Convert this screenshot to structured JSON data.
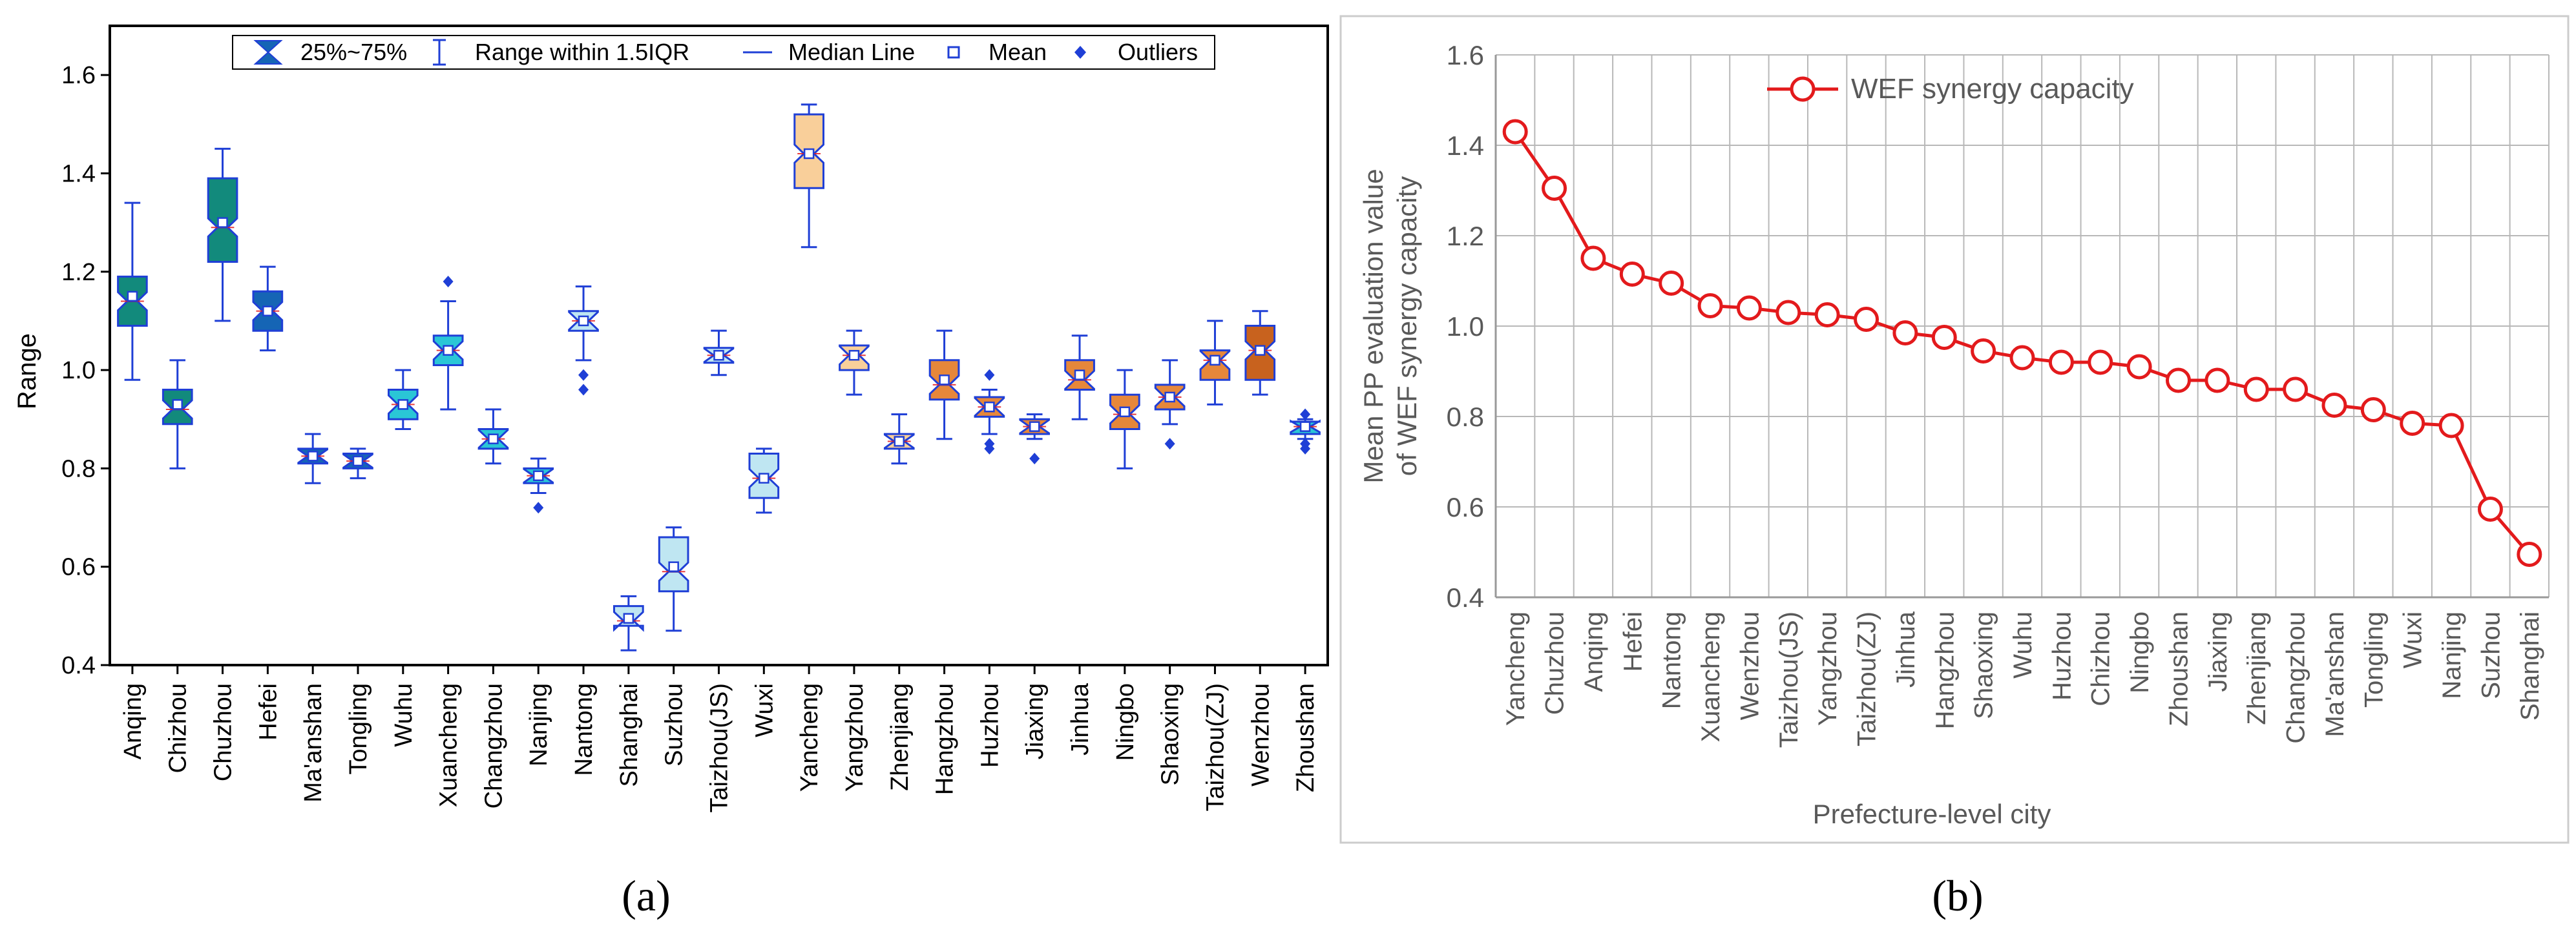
{
  "colors": {
    "box_blue_stroke": "#1f3fd6",
    "median_line": "#1f3fd6",
    "mean_marker": "#1f3fd6",
    "outlier": "#1f3fd6",
    "fill_teal_dark": "#128a7c",
    "fill_blue_dark": "#1565b5",
    "fill_cyan": "#2ac6d6",
    "fill_light_blue": "#bfe6f2",
    "fill_peach": "#f9cf9a",
    "fill_orange": "#e6873a",
    "fill_brown": "#c8621e",
    "line_red": "#e31a1c",
    "grid": "#b8b8b8",
    "axis_b": "#999999",
    "text_b": "#595959",
    "panel_border": "#cccccc"
  },
  "chart_data": [
    {
      "type": "box",
      "panel_label": "(a)",
      "title": "",
      "ylabel": "Range",
      "xlabel": "",
      "ylim": [
        0.4,
        1.7
      ],
      "yticks": [
        "0.4",
        "0.6",
        "0.8",
        "1.0",
        "1.2",
        "1.4",
        "1.6"
      ],
      "legend": {
        "placement": "top-center",
        "entries": [
          "25%~75%",
          "Range within 1.5IQR",
          "Median Line",
          "Mean",
          "Outliers"
        ]
      },
      "categories": [
        "Anqing",
        "Chizhou",
        "Chuzhou",
        "Hefei",
        "Ma'anshan",
        "Tongling",
        "Wuhu",
        "Xuancheng",
        "Changzhou",
        "Nanjing",
        "Nantong",
        "Shanghai",
        "Suzhou",
        "Taizhou(JS)",
        "Wuxi",
        "Yancheng",
        "Yangzhou",
        "Zhenjiang",
        "Hangzhou",
        "Huzhou",
        "Jiaxing",
        "Jinhua",
        "Ningbo",
        "Shaoxing",
        "Taizhou(ZJ)",
        "Wenzhou",
        "Zhoushan"
      ],
      "boxes": [
        {
          "min": 0.98,
          "q1": 1.09,
          "median": 1.14,
          "q3": 1.19,
          "max": 1.34,
          "mean": 1.15,
          "fill": "#128a7c",
          "outliers": []
        },
        {
          "min": 0.8,
          "q1": 0.89,
          "median": 0.92,
          "q3": 0.96,
          "max": 1.02,
          "mean": 0.93,
          "fill": "#128a7c",
          "outliers": []
        },
        {
          "min": 1.1,
          "q1": 1.22,
          "median": 1.29,
          "q3": 1.39,
          "max": 1.45,
          "mean": 1.3,
          "fill": "#128a7c",
          "outliers": []
        },
        {
          "min": 1.04,
          "q1": 1.08,
          "median": 1.12,
          "q3": 1.16,
          "max": 1.21,
          "mean": 1.12,
          "fill": "#1565b5",
          "outliers": []
        },
        {
          "min": 0.77,
          "q1": 0.81,
          "median": 0.825,
          "q3": 0.84,
          "max": 0.87,
          "mean": 0.825,
          "fill": "#1565b5",
          "outliers": []
        },
        {
          "min": 0.78,
          "q1": 0.8,
          "median": 0.815,
          "q3": 0.83,
          "max": 0.84,
          "mean": 0.815,
          "fill": "#1565b5",
          "outliers": []
        },
        {
          "min": 0.88,
          "q1": 0.9,
          "median": 0.93,
          "q3": 0.96,
          "max": 1.0,
          "mean": 0.93,
          "fill": "#2ac6d6",
          "outliers": []
        },
        {
          "min": 0.92,
          "q1": 1.01,
          "median": 1.04,
          "q3": 1.07,
          "max": 1.14,
          "mean": 1.04,
          "fill": "#2ac6d6",
          "outliers": [
            1.18
          ]
        },
        {
          "min": 0.81,
          "q1": 0.84,
          "median": 0.86,
          "q3": 0.88,
          "max": 0.92,
          "mean": 0.86,
          "fill": "#2ac6d6",
          "outliers": []
        },
        {
          "min": 0.75,
          "q1": 0.77,
          "median": 0.785,
          "q3": 0.8,
          "max": 0.82,
          "mean": 0.785,
          "fill": "#2ac6d6",
          "outliers": [
            0.72
          ]
        },
        {
          "min": 1.02,
          "q1": 1.08,
          "median": 1.1,
          "q3": 1.12,
          "max": 1.17,
          "mean": 1.1,
          "fill": "#bfe6f2",
          "outliers": [
            0.99,
            0.96
          ]
        },
        {
          "min": 0.43,
          "q1": 0.48,
          "median": 0.49,
          "q3": 0.52,
          "max": 0.54,
          "mean": 0.495,
          "fill": "#bfe6f2",
          "outliers": []
        },
        {
          "min": 0.47,
          "q1": 0.55,
          "median": 0.59,
          "q3": 0.66,
          "max": 0.68,
          "mean": 0.6,
          "fill": "#bfe6f2",
          "outliers": []
        },
        {
          "min": 0.99,
          "q1": 1.015,
          "median": 1.03,
          "q3": 1.045,
          "max": 1.08,
          "mean": 1.03,
          "fill": "#bfe6f2",
          "outliers": []
        },
        {
          "min": 0.71,
          "q1": 0.74,
          "median": 0.78,
          "q3": 0.83,
          "max": 0.84,
          "mean": 0.78,
          "fill": "#bfe6f2",
          "outliers": []
        },
        {
          "min": 1.25,
          "q1": 1.37,
          "median": 1.44,
          "q3": 1.52,
          "max": 1.54,
          "mean": 1.44,
          "fill": "#f9cf9a",
          "outliers": []
        },
        {
          "min": 0.95,
          "q1": 1.0,
          "median": 1.03,
          "q3": 1.05,
          "max": 1.08,
          "mean": 1.03,
          "fill": "#f9cf9a",
          "outliers": []
        },
        {
          "min": 0.81,
          "q1": 0.84,
          "median": 0.855,
          "q3": 0.87,
          "max": 0.91,
          "mean": 0.855,
          "fill": "#f9cf9a",
          "outliers": []
        },
        {
          "min": 0.86,
          "q1": 0.94,
          "median": 0.97,
          "q3": 1.02,
          "max": 1.08,
          "mean": 0.98,
          "fill": "#e6873a",
          "outliers": []
        },
        {
          "min": 0.87,
          "q1": 0.905,
          "median": 0.925,
          "q3": 0.945,
          "max": 0.96,
          "mean": 0.925,
          "fill": "#e6873a",
          "outliers": [
            0.99,
            0.85,
            0.84
          ]
        },
        {
          "min": 0.86,
          "q1": 0.87,
          "median": 0.885,
          "q3": 0.9,
          "max": 0.91,
          "mean": 0.885,
          "fill": "#e6873a",
          "outliers": [
            0.82
          ]
        },
        {
          "min": 0.9,
          "q1": 0.96,
          "median": 0.98,
          "q3": 1.02,
          "max": 1.07,
          "mean": 0.99,
          "fill": "#e6873a",
          "outliers": []
        },
        {
          "min": 0.8,
          "q1": 0.88,
          "median": 0.91,
          "q3": 0.95,
          "max": 1.0,
          "mean": 0.915,
          "fill": "#e6873a",
          "outliers": []
        },
        {
          "min": 0.89,
          "q1": 0.92,
          "median": 0.945,
          "q3": 0.97,
          "max": 1.02,
          "mean": 0.945,
          "fill": "#e6873a",
          "outliers": [
            0.85
          ]
        },
        {
          "min": 0.93,
          "q1": 0.98,
          "median": 1.02,
          "q3": 1.04,
          "max": 1.1,
          "mean": 1.02,
          "fill": "#e6873a",
          "outliers": []
        },
        {
          "min": 0.95,
          "q1": 0.98,
          "median": 1.04,
          "q3": 1.09,
          "max": 1.12,
          "mean": 1.04,
          "fill": "#c8621e",
          "outliers": []
        },
        {
          "min": 0.86,
          "q1": 0.87,
          "median": 0.885,
          "q3": 0.895,
          "max": 0.9,
          "mean": 0.885,
          "fill": "#2ac6d6",
          "outliers": [
            0.91,
            0.85,
            0.84
          ]
        }
      ]
    },
    {
      "type": "line",
      "panel_label": "(b)",
      "title": "",
      "ylabel_lines": [
        "Mean PP evaluation value",
        "of WEF synergy capacity"
      ],
      "xlabel": "Prefecture-level city",
      "ylim": [
        0.4,
        1.6
      ],
      "yticks": [
        "0.4",
        "0.6",
        "0.8",
        "1.0",
        "1.2",
        "1.4",
        "1.6"
      ],
      "grid": true,
      "legend": {
        "placement": "top-left",
        "entries": [
          "WEF synergy capacity"
        ]
      },
      "categories": [
        "Yancheng",
        "Chuzhou",
        "Anqing",
        "Hefei",
        "Nantong",
        "Xuancheng",
        "Wenzhou",
        "Taizhou(JS)",
        "Yangzhou",
        "Taizhou(ZJ)",
        "Jinhua",
        "Hangzhou",
        "Shaoxing",
        "Wuhu",
        "Huzhou",
        "Chizhou",
        "Ningbo",
        "Zhoushan",
        "Jiaxing",
        "Zhenjiang",
        "Changzhou",
        "Ma'anshan",
        "Tongling",
        "Wuxi",
        "Nanjing",
        "Suzhou",
        "Shanghai"
      ],
      "series": [
        {
          "name": "WEF synergy capacity",
          "values": [
            1.43,
            1.305,
            1.15,
            1.115,
            1.095,
            1.045,
            1.04,
            1.03,
            1.025,
            1.015,
            0.985,
            0.975,
            0.945,
            0.93,
            0.92,
            0.92,
            0.91,
            0.88,
            0.88,
            0.86,
            0.86,
            0.825,
            0.815,
            0.785,
            0.78,
            0.595,
            0.495
          ]
        }
      ]
    }
  ]
}
